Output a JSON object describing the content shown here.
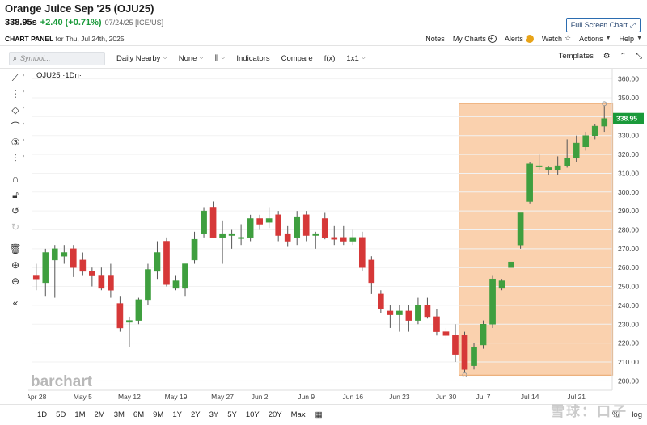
{
  "header": {
    "title": "Orange Juice Sep '25 (OJU25)",
    "last": "338.95s",
    "change": "+2.40 (+0.71%)",
    "meta": "07/24/25 [ICE/US]",
    "fullscreen_label": "Full Screen Chart",
    "panel_label_bold": "CHART PANEL",
    "panel_label_rest": "for Thu, Jul 24th, 2025",
    "links": {
      "notes": "Notes",
      "mycharts": "My Charts",
      "alerts": "Alerts",
      "watch": "Watch",
      "actions": "Actions",
      "help": "Help"
    }
  },
  "toolbar": {
    "symbol_placeholder": "Symbol...",
    "interval": "Daily Nearby",
    "study": "None",
    "indicators": "Indicators",
    "compare": "Compare",
    "fx": "f(x)",
    "layout": "1x1",
    "templates": "Templates"
  },
  "chart": {
    "series_label": "OJU25 ·1Dn·",
    "watermark_brand": "barchart",
    "current_price_badge": "338.95",
    "colors": {
      "up": "#3f9f3f",
      "down": "#d63838",
      "highlight": "#f9c9a0",
      "highlight_border": "#e8a060",
      "badge": "#1a9a3a"
    }
  },
  "chart_data": {
    "type": "candlestick",
    "ylim": [
      195,
      365
    ],
    "y_ticks": [
      "200.00",
      "210.00",
      "220.00",
      "230.00",
      "240.00",
      "250.00",
      "260.00",
      "270.00",
      "280.00",
      "290.00",
      "300.00",
      "310.00",
      "320.00",
      "330.00",
      "340.00",
      "350.00",
      "360.00"
    ],
    "x_ticks": [
      "Apr 28",
      "May 5",
      "May 12",
      "May 19",
      "May 27",
      "Jun 2",
      "Jun 9",
      "Jun 16",
      "Jun 23",
      "Jun 30",
      "Jul 7",
      "Jul 14",
      "Jul 21"
    ],
    "bars": [
      {
        "date": "Apr 28",
        "o": 256,
        "h": 262,
        "l": 248,
        "c": 254
      },
      {
        "date": "Apr 29",
        "o": 252,
        "h": 270,
        "l": 245,
        "c": 268
      },
      {
        "date": "Apr 30",
        "o": 264,
        "h": 272,
        "l": 244,
        "c": 270
      },
      {
        "date": "May 1",
        "o": 266,
        "h": 272,
        "l": 262,
        "c": 268
      },
      {
        "date": "May 2",
        "o": 270,
        "h": 272,
        "l": 255,
        "c": 260
      },
      {
        "date": "May 5",
        "o": 264,
        "h": 268,
        "l": 256,
        "c": 258
      },
      {
        "date": "May 6",
        "o": 258,
        "h": 260,
        "l": 250,
        "c": 256
      },
      {
        "date": "May 7",
        "o": 256,
        "h": 260,
        "l": 248,
        "c": 249
      },
      {
        "date": "May 8",
        "o": 256,
        "h": 262,
        "l": 244,
        "c": 248
      },
      {
        "date": "May 9",
        "o": 241,
        "h": 245,
        "l": 226,
        "c": 228
      },
      {
        "date": "May 12",
        "o": 231,
        "h": 234,
        "l": 218,
        "c": 232
      },
      {
        "date": "May 13",
        "o": 232,
        "h": 244,
        "l": 230,
        "c": 243
      },
      {
        "date": "May 14",
        "o": 243,
        "h": 262,
        "l": 240,
        "c": 259
      },
      {
        "date": "May 15",
        "o": 258,
        "h": 274,
        "l": 254,
        "c": 268
      },
      {
        "date": "May 16",
        "o": 274,
        "h": 276,
        "l": 250,
        "c": 251
      },
      {
        "date": "May 19",
        "o": 249,
        "h": 256,
        "l": 248,
        "c": 253
      },
      {
        "date": "May 20",
        "o": 249,
        "h": 262,
        "l": 245,
        "c": 262
      },
      {
        "date": "May 21",
        "o": 264,
        "h": 279,
        "l": 262,
        "c": 275
      },
      {
        "date": "May 22",
        "o": 278,
        "h": 292,
        "l": 276,
        "c": 290
      },
      {
        "date": "May 23",
        "o": 292,
        "h": 295,
        "l": 276,
        "c": 276
      },
      {
        "date": "May 27",
        "o": 276,
        "h": 285,
        "l": 262,
        "c": 278
      },
      {
        "date": "May 28",
        "o": 277,
        "h": 280,
        "l": 270,
        "c": 278
      },
      {
        "date": "May 29",
        "o": 276,
        "h": 283,
        "l": 272,
        "c": 276
      },
      {
        "date": "May 30",
        "o": 276,
        "h": 288,
        "l": 274,
        "c": 286
      },
      {
        "date": "Jun 2",
        "o": 286,
        "h": 288,
        "l": 280,
        "c": 283
      },
      {
        "date": "Jun 3",
        "o": 284,
        "h": 292,
        "l": 281,
        "c": 286
      },
      {
        "date": "Jun 4",
        "o": 288,
        "h": 290,
        "l": 274,
        "c": 277
      },
      {
        "date": "Jun 5",
        "o": 278,
        "h": 282,
        "l": 271,
        "c": 274
      },
      {
        "date": "Jun 6",
        "o": 276,
        "h": 290,
        "l": 272,
        "c": 287
      },
      {
        "date": "Jun 9",
        "o": 288,
        "h": 290,
        "l": 274,
        "c": 277
      },
      {
        "date": "Jun 10",
        "o": 277,
        "h": 279,
        "l": 270,
        "c": 278
      },
      {
        "date": "Jun 11",
        "o": 286,
        "h": 289,
        "l": 275,
        "c": 276
      },
      {
        "date": "Jun 12",
        "o": 276,
        "h": 282,
        "l": 272,
        "c": 275
      },
      {
        "date": "Jun 13",
        "o": 276,
        "h": 282,
        "l": 272,
        "c": 274
      },
      {
        "date": "Jun 16",
        "o": 274,
        "h": 280,
        "l": 272,
        "c": 276
      },
      {
        "date": "Jun 17",
        "o": 276,
        "h": 279,
        "l": 258,
        "c": 260
      },
      {
        "date": "Jun 18",
        "o": 264,
        "h": 266,
        "l": 246,
        "c": 252
      },
      {
        "date": "Jun 19",
        "o": 246,
        "h": 248,
        "l": 236,
        "c": 238
      },
      {
        "date": "Jun 20",
        "o": 237,
        "h": 240,
        "l": 228,
        "c": 235
      },
      {
        "date": "Jun 23",
        "o": 235,
        "h": 240,
        "l": 226,
        "c": 237
      },
      {
        "date": "Jun 24",
        "o": 237,
        "h": 240,
        "l": 226,
        "c": 232
      },
      {
        "date": "Jun 25",
        "o": 232,
        "h": 244,
        "l": 230,
        "c": 240
      },
      {
        "date": "Jun 26",
        "o": 240,
        "h": 244,
        "l": 233,
        "c": 234
      },
      {
        "date": "Jun 27",
        "o": 234,
        "h": 238,
        "l": 224,
        "c": 226
      },
      {
        "date": "Jun 30",
        "o": 226,
        "h": 228,
        "l": 222,
        "c": 224
      },
      {
        "date": "Jul 1",
        "o": 224,
        "h": 230,
        "l": 210,
        "c": 214
      },
      {
        "date": "Jul 2",
        "o": 224,
        "h": 226,
        "l": 204,
        "c": 206
      },
      {
        "date": "Jul 3",
        "o": 208,
        "h": 220,
        "l": 206,
        "c": 218
      },
      {
        "date": "Jul 7",
        "o": 219,
        "h": 232,
        "l": 217,
        "c": 230
      },
      {
        "date": "Jul 8",
        "o": 230,
        "h": 256,
        "l": 228,
        "c": 254
      },
      {
        "date": "Jul 9",
        "o": 249,
        "h": 254,
        "l": 248,
        "c": 253
      },
      {
        "date": "Jul 10",
        "o": 260,
        "h": 263,
        "l": 260,
        "c": 263
      },
      {
        "date": "Jul 11",
        "o": 272,
        "h": 289,
        "l": 270,
        "c": 289
      },
      {
        "date": "Jul 14",
        "o": 295,
        "h": 316,
        "l": 294,
        "c": 315
      },
      {
        "date": "Jul 15",
        "o": 314,
        "h": 320,
        "l": 312,
        "c": 314
      },
      {
        "date": "Jul 16",
        "o": 312,
        "h": 314,
        "l": 309,
        "c": 313
      },
      {
        "date": "Jul 17",
        "o": 312,
        "h": 319,
        "l": 309,
        "c": 314
      },
      {
        "date": "Jul 18",
        "o": 314,
        "h": 328,
        "l": 313,
        "c": 318
      },
      {
        "date": "Jul 21",
        "o": 318,
        "h": 330,
        "l": 316,
        "c": 326
      },
      {
        "date": "Jul 22",
        "o": 324,
        "h": 332,
        "l": 322,
        "c": 330
      },
      {
        "date": "Jul 23",
        "o": 330,
        "h": 336,
        "l": 328,
        "c": 335
      },
      {
        "date": "Jul 24",
        "o": 335,
        "h": 346,
        "l": 332,
        "c": 339
      }
    ],
    "highlight_region": {
      "from": "Jul 2",
      "to": "Jul 24"
    }
  },
  "bottom": {
    "timeframes": [
      "1D",
      "5D",
      "1M",
      "2M",
      "3M",
      "6M",
      "9M",
      "1Y",
      "2Y",
      "3Y",
      "5Y",
      "10Y",
      "20Y",
      "Max"
    ],
    "pct": "%",
    "log": "log",
    "watermark": "雪球：口子"
  }
}
